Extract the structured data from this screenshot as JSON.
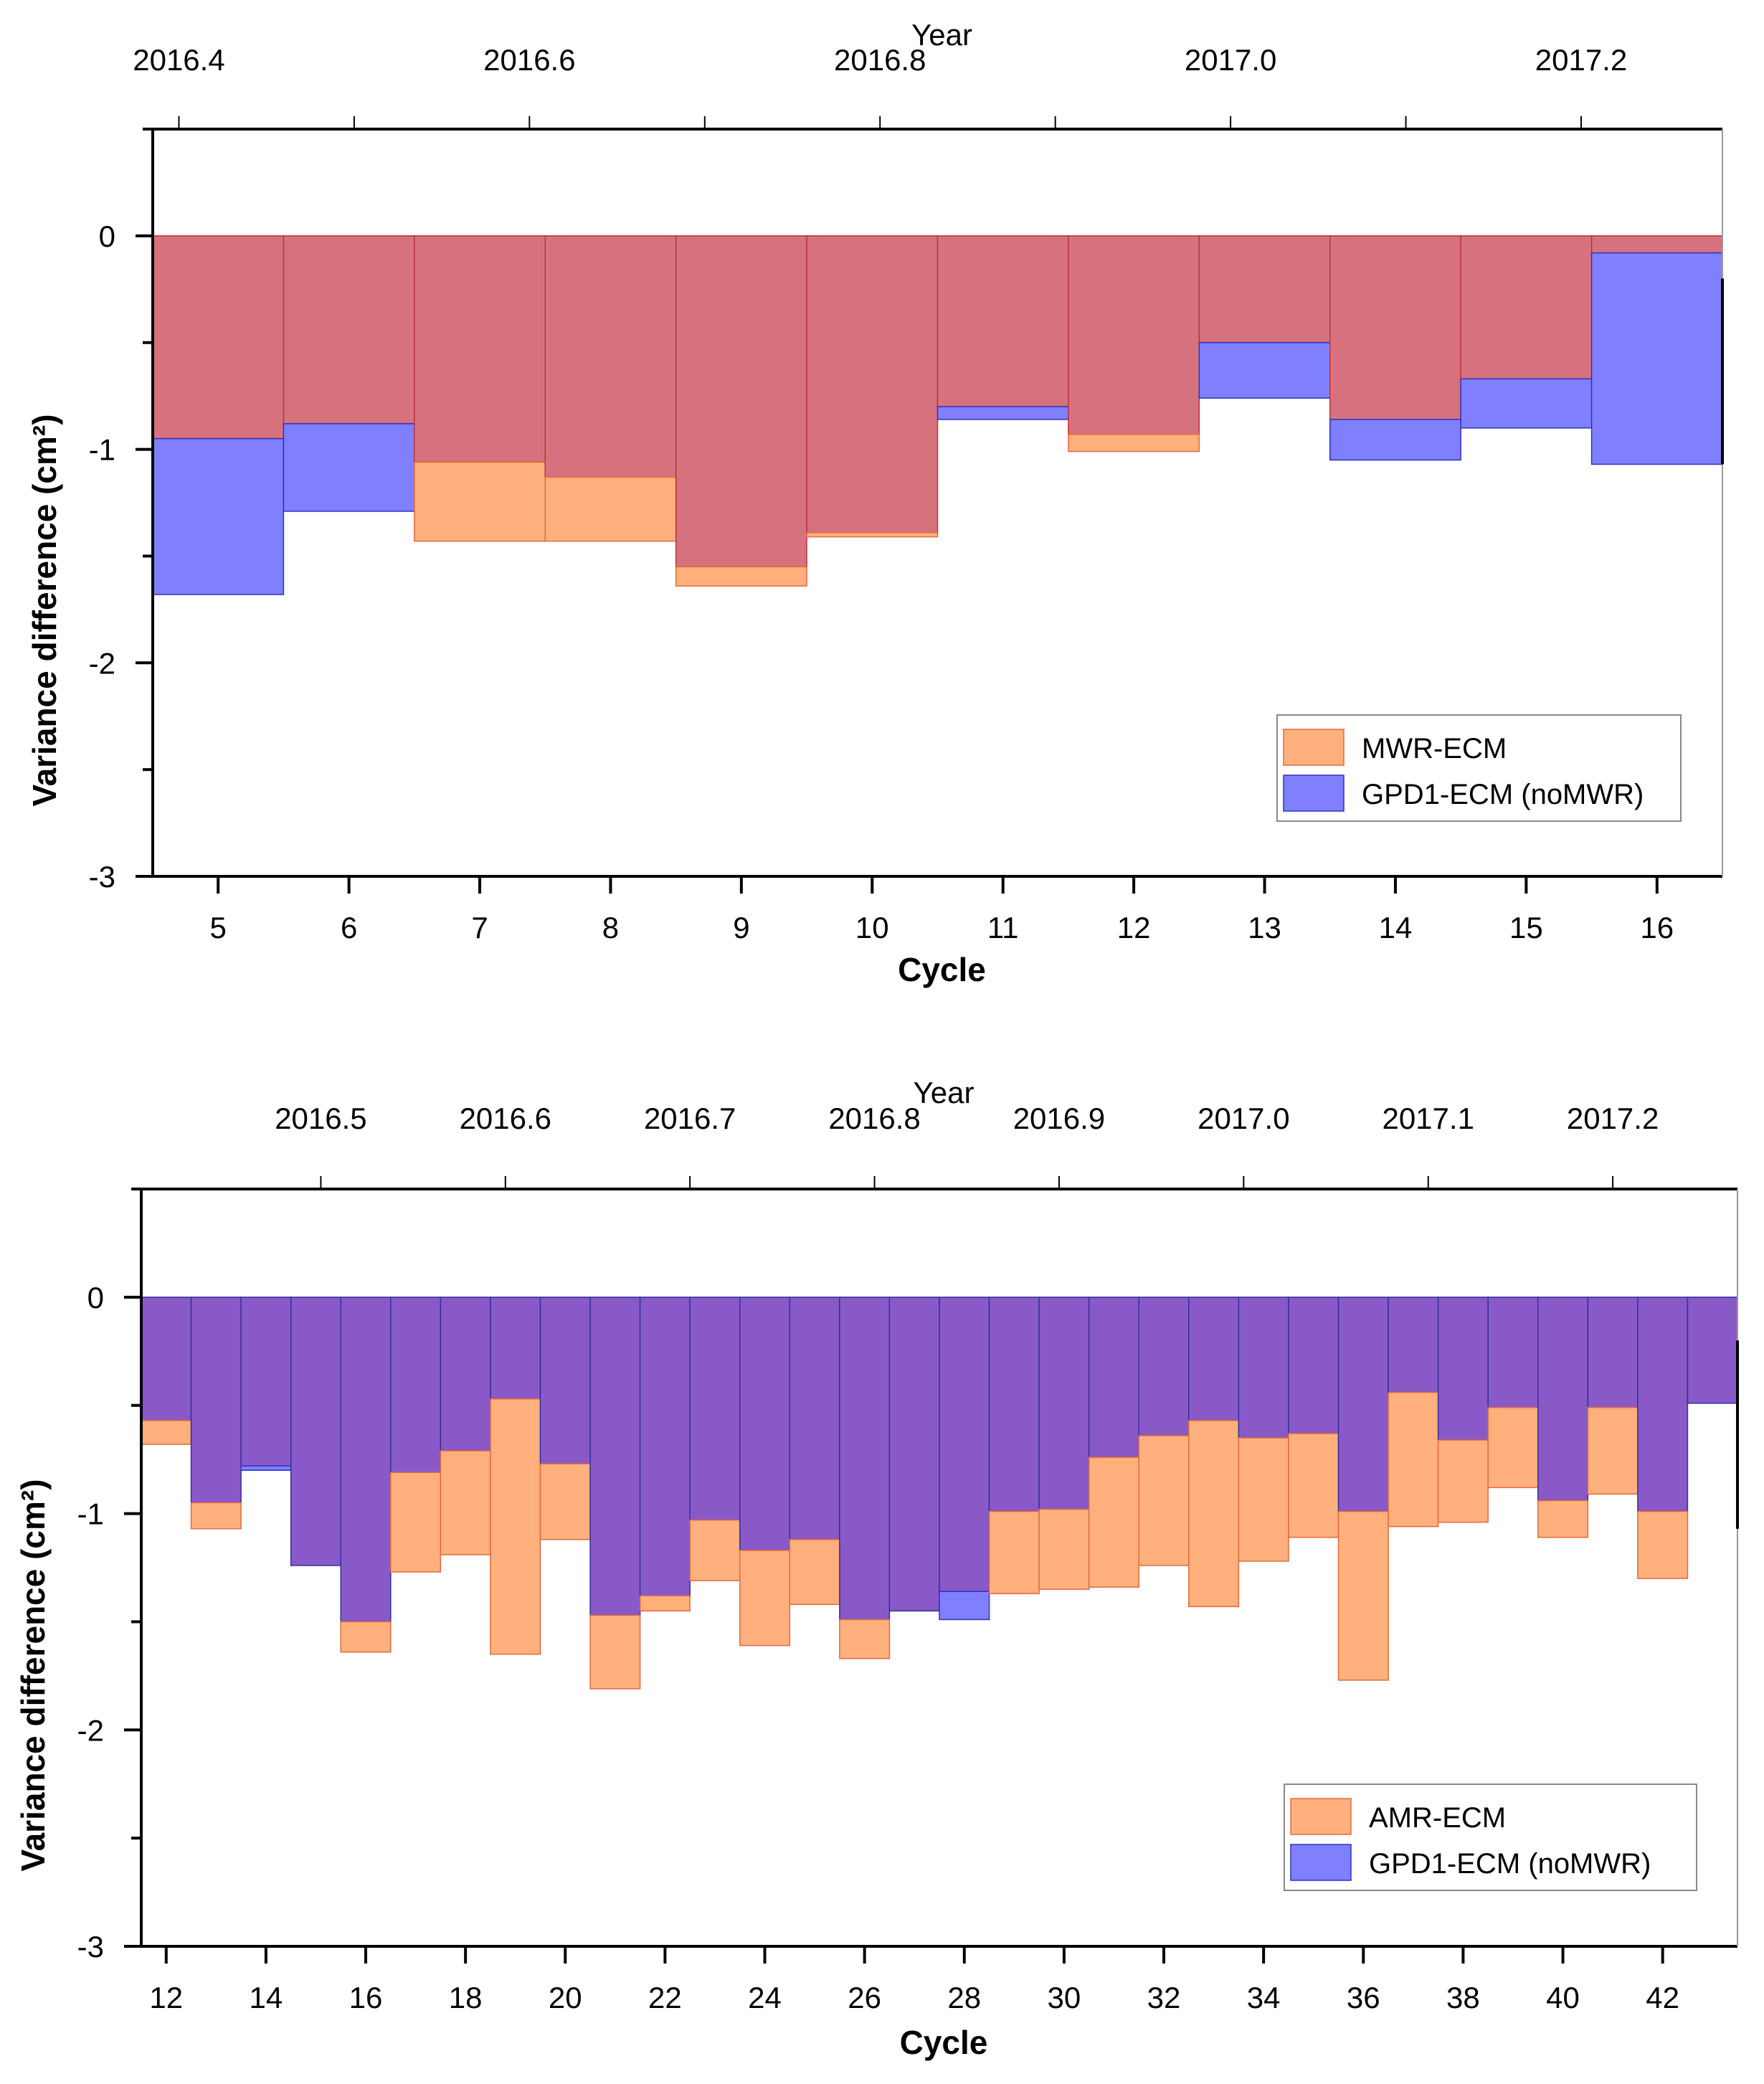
{
  "chart_data": [
    {
      "type": "bar",
      "title": "",
      "xlabel": "Cycle",
      "ylabel": "Variance difference (cm²)",
      "top_xlabel": "Year",
      "ylim": [
        -3,
        0.5
      ],
      "xlim": [
        4.5,
        16.5
      ],
      "categories": [
        5,
        6,
        7,
        8,
        9,
        10,
        11,
        12,
        13,
        14,
        15,
        16
      ],
      "x_tick_labels": [
        "5",
        "6",
        "7",
        "8",
        "9",
        "10",
        "11",
        "12",
        "13",
        "14",
        "15",
        "16"
      ],
      "y_tick_labels": [
        "-3",
        "-2",
        "-1",
        "0"
      ],
      "y_ticks": [
        -3,
        -2.5,
        -2,
        -1.5,
        -1,
        -0.5,
        0,
        0.5
      ],
      "top_ticks": [
        {
          "label": "2016.4",
          "cycle": 4.7
        },
        {
          "label": "2016.6",
          "cycle": 7.38
        },
        {
          "label": "2016.8",
          "cycle": 10.06
        },
        {
          "label": "2017.0",
          "cycle": 12.74
        },
        {
          "label": "2017.2",
          "cycle": 15.42
        }
      ],
      "top_minor_ticks": [
        6.04,
        8.72,
        11.4,
        14.08
      ],
      "series": [
        {
          "name": "MWR-ECM",
          "color": "#FFB07C",
          "edge": "#E06A40",
          "values": [
            -0.95,
            -0.88,
            -1.43,
            -1.43,
            -1.64,
            -1.41,
            -0.8,
            -1.01,
            -0.5,
            -0.86,
            -0.67,
            -0.08
          ]
        },
        {
          "name": "GPD1-ECM (noMWR)",
          "color": "#8080FF",
          "edge": "#3030C0",
          "values": [
            -1.68,
            -1.29,
            -1.06,
            -1.13,
            -1.55,
            -1.39,
            -0.86,
            -0.93,
            -0.76,
            -1.05,
            -0.9,
            -1.07
          ]
        }
      ],
      "overlap_color": "#D6727E",
      "legend": {
        "placement": "bottom-right",
        "entries": [
          "MWR-ECM",
          "GPD1-ECM (noMWR)"
        ]
      }
    },
    {
      "type": "bar",
      "title": "",
      "xlabel": "Cycle",
      "ylabel": "Variance difference (cm²)",
      "top_xlabel": "Year",
      "ylim": [
        -3,
        0.5
      ],
      "xlim": [
        11.5,
        43.5
      ],
      "categories": [
        12,
        13,
        14,
        15,
        16,
        17,
        18,
        19,
        20,
        21,
        22,
        23,
        24,
        25,
        26,
        27,
        28,
        29,
        30,
        31,
        32,
        33,
        34,
        35,
        36,
        37,
        38,
        39,
        40,
        41,
        42,
        43
      ],
      "x_ticks": [
        12,
        14,
        16,
        18,
        20,
        22,
        24,
        26,
        28,
        30,
        32,
        34,
        36,
        38,
        40,
        42
      ],
      "x_tick_labels": [
        "12",
        "14",
        "16",
        "18",
        "20",
        "22",
        "24",
        "26",
        "28",
        "30",
        "32",
        "34",
        "36",
        "38",
        "40",
        "42"
      ],
      "y_tick_labels": [
        "-3",
        "-2",
        "-1",
        "0"
      ],
      "y_ticks": [
        -3,
        -2.5,
        -2,
        -1.5,
        -1,
        -0.5,
        0,
        0.5
      ],
      "top_ticks": [
        {
          "label": "2016.5",
          "cycle": 15.1
        },
        {
          "label": "2016.6",
          "cycle": 18.8
        },
        {
          "label": "2016.7",
          "cycle": 22.5
        },
        {
          "label": "2016.8",
          "cycle": 26.2
        },
        {
          "label": "2016.9",
          "cycle": 29.9
        },
        {
          "label": "2017.0",
          "cycle": 33.6
        },
        {
          "label": "2017.1",
          "cycle": 37.3
        },
        {
          "label": "2017.2",
          "cycle": 41.0
        }
      ],
      "top_minor_ticks": [],
      "series": [
        {
          "name": "AMR-ECM",
          "color": "#FFB07C",
          "edge": "#E06A40",
          "values": [
            -0.68,
            -1.07,
            -0.78,
            -1.24,
            -1.64,
            -1.27,
            -1.19,
            -1.65,
            -1.12,
            -1.81,
            -1.45,
            -1.31,
            -1.61,
            -1.42,
            -1.67,
            -1.45,
            -1.36,
            -1.37,
            -1.35,
            -1.34,
            -1.24,
            -1.43,
            -1.22,
            -1.11,
            -1.77,
            -1.06,
            -1.04,
            -0.88,
            -1.11,
            -0.91,
            -1.3,
            -0.49
          ]
        },
        {
          "name": "GPD1-ECM (noMWR)",
          "color": "#8080FF",
          "edge": "#3030C0",
          "values": [
            -0.57,
            -0.95,
            -0.8,
            -1.24,
            -1.5,
            -0.81,
            -0.71,
            -0.47,
            -0.77,
            -1.47,
            -1.38,
            -1.03,
            -1.17,
            -1.12,
            -1.49,
            -1.45,
            -1.49,
            -0.99,
            -0.98,
            -0.74,
            -0.64,
            -0.57,
            -0.65,
            -0.63,
            -0.99,
            -0.44,
            -0.66,
            -0.51,
            -0.94,
            -0.51,
            -0.99,
            -0.49
          ]
        }
      ],
      "overlap_color": "#8A59C8",
      "legend": {
        "placement": "bottom-right",
        "entries": [
          "AMR-ECM",
          "GPD1-ECM (noMWR)"
        ]
      }
    }
  ]
}
